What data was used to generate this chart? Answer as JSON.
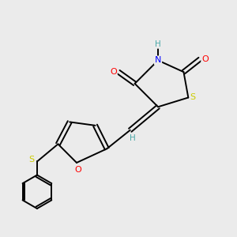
{
  "background_color": "#ebebeb",
  "atom_colors": {
    "C": "#000000",
    "H": "#4aa8a8",
    "N": "#0000ff",
    "O": "#ff0000",
    "S": "#cccc00"
  },
  "figsize": [
    3.0,
    3.0
  ],
  "dpi": 100,
  "lw": 1.4,
  "fontsize": 8.0
}
